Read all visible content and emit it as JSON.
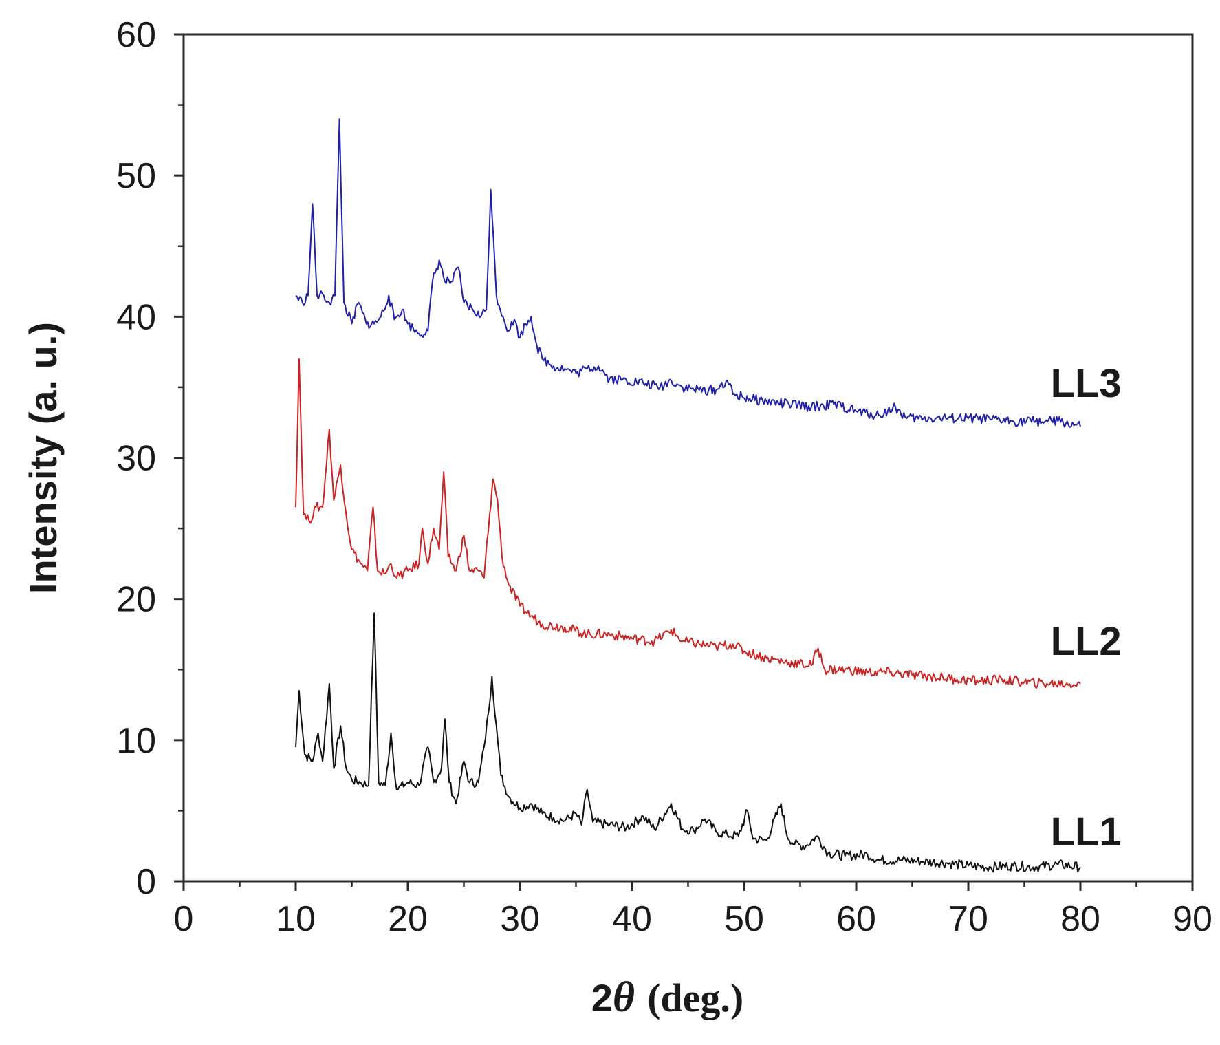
{
  "chart_data": {
    "type": "line",
    "xlabel_prefix": "2",
    "xlabel_symbol": "θ",
    "xlabel_suffix": "(deg.)",
    "ylabel": "Intensity (a. u.)",
    "xlim": [
      0,
      90
    ],
    "ylim": [
      0,
      60
    ],
    "xticks": [
      0,
      10,
      20,
      30,
      40,
      50,
      60,
      70,
      80,
      90
    ],
    "yticks": [
      0,
      10,
      20,
      30,
      40,
      50,
      60
    ],
    "grid": false,
    "series": [
      {
        "name": "LL1",
        "color": "#111111",
        "points": [
          [
            10.0,
            9.5
          ],
          [
            10.3,
            13.5
          ],
          [
            10.8,
            9.0
          ],
          [
            11.5,
            8.5
          ],
          [
            12.0,
            10.5
          ],
          [
            12.4,
            8.5
          ],
          [
            13.0,
            14.0
          ],
          [
            13.4,
            8.0
          ],
          [
            14.0,
            11.0
          ],
          [
            14.5,
            8.0
          ],
          [
            15.0,
            7.2
          ],
          [
            15.8,
            7.0
          ],
          [
            16.5,
            6.8
          ],
          [
            17.0,
            19.0
          ],
          [
            17.4,
            7.0
          ],
          [
            18.0,
            6.8
          ],
          [
            18.5,
            10.5
          ],
          [
            19.0,
            6.5
          ],
          [
            20.0,
            7.0
          ],
          [
            21.0,
            6.8
          ],
          [
            21.8,
            9.5
          ],
          [
            22.3,
            7.0
          ],
          [
            23.0,
            8.0
          ],
          [
            23.3,
            11.5
          ],
          [
            23.7,
            7.0
          ],
          [
            24.3,
            5.5
          ],
          [
            25.0,
            8.5
          ],
          [
            25.5,
            7.0
          ],
          [
            26.3,
            7.0
          ],
          [
            26.8,
            9.5
          ],
          [
            27.2,
            12.0
          ],
          [
            27.5,
            14.5
          ],
          [
            27.9,
            11.0
          ],
          [
            28.3,
            7.5
          ],
          [
            29.0,
            6.0
          ],
          [
            30.0,
            5.2
          ],
          [
            31.0,
            5.5
          ],
          [
            32.0,
            4.8
          ],
          [
            33.0,
            4.5
          ],
          [
            34.0,
            4.3
          ],
          [
            35.0,
            4.8
          ],
          [
            35.5,
            4.0
          ],
          [
            36.0,
            6.5
          ],
          [
            36.5,
            4.2
          ],
          [
            38.0,
            4.0
          ],
          [
            39.5,
            3.8
          ],
          [
            41.0,
            4.6
          ],
          [
            42.0,
            3.7
          ],
          [
            43.5,
            5.5
          ],
          [
            44.5,
            3.7
          ],
          [
            45.5,
            3.6
          ],
          [
            46.5,
            4.4
          ],
          [
            47.5,
            3.5
          ],
          [
            48.5,
            3.3
          ],
          [
            49.5,
            3.2
          ],
          [
            50.3,
            5.0
          ],
          [
            50.8,
            3.0
          ],
          [
            52.0,
            2.9
          ],
          [
            53.3,
            5.5
          ],
          [
            53.8,
            3.3
          ],
          [
            54.5,
            2.6
          ],
          [
            55.5,
            2.5
          ],
          [
            56.5,
            3.2
          ],
          [
            57.5,
            2.0
          ],
          [
            59.0,
            1.8
          ],
          [
            61.0,
            1.9
          ],
          [
            62.0,
            1.5
          ],
          [
            64.0,
            1.5
          ],
          [
            66.0,
            1.4
          ],
          [
            68.0,
            1.3
          ],
          [
            70.0,
            1.1
          ],
          [
            72.0,
            1.0
          ],
          [
            74.0,
            1.1
          ],
          [
            76.0,
            1.0
          ],
          [
            78.0,
            1.2
          ],
          [
            80.0,
            1.0
          ]
        ]
      },
      {
        "name": "LL2",
        "color": "#cc2222",
        "points": [
          [
            10.0,
            26.5
          ],
          [
            10.3,
            37.0
          ],
          [
            10.7,
            26.0
          ],
          [
            11.2,
            25.5
          ],
          [
            11.8,
            26.5
          ],
          [
            12.4,
            26.5
          ],
          [
            13.0,
            32.0
          ],
          [
            13.4,
            27.0
          ],
          [
            14.0,
            29.5
          ],
          [
            14.5,
            26.0
          ],
          [
            15.0,
            23.5
          ],
          [
            15.8,
            22.5
          ],
          [
            16.4,
            22.0
          ],
          [
            16.9,
            26.5
          ],
          [
            17.3,
            22.0
          ],
          [
            18.0,
            21.8
          ],
          [
            18.5,
            22.5
          ],
          [
            19.0,
            21.5
          ],
          [
            20.0,
            22.0
          ],
          [
            21.0,
            22.5
          ],
          [
            21.3,
            25.0
          ],
          [
            21.8,
            22.5
          ],
          [
            22.3,
            25.0
          ],
          [
            22.8,
            23.5
          ],
          [
            23.2,
            29.0
          ],
          [
            23.6,
            23.0
          ],
          [
            24.3,
            22.0
          ],
          [
            25.0,
            24.5
          ],
          [
            25.5,
            22.0
          ],
          [
            26.3,
            22.0
          ],
          [
            26.8,
            21.5
          ],
          [
            27.3,
            26.0
          ],
          [
            27.6,
            28.5
          ],
          [
            28.0,
            27.0
          ],
          [
            28.4,
            23.0
          ],
          [
            29.0,
            21.0
          ],
          [
            30.0,
            19.5
          ],
          [
            31.0,
            18.8
          ],
          [
            32.0,
            18.2
          ],
          [
            34.0,
            18.0
          ],
          [
            36.0,
            17.5
          ],
          [
            38.0,
            17.5
          ],
          [
            40.0,
            17.2
          ],
          [
            42.0,
            17.0
          ],
          [
            43.5,
            17.8
          ],
          [
            44.5,
            17.0
          ],
          [
            46.0,
            16.8
          ],
          [
            47.5,
            16.6
          ],
          [
            49.0,
            16.8
          ],
          [
            50.0,
            16.3
          ],
          [
            52.0,
            15.8
          ],
          [
            54.0,
            15.5
          ],
          [
            56.0,
            15.3
          ],
          [
            56.6,
            16.5
          ],
          [
            57.2,
            15.0
          ],
          [
            59.0,
            15.0
          ],
          [
            61.0,
            14.8
          ],
          [
            63.0,
            14.8
          ],
          [
            65.0,
            14.6
          ],
          [
            67.0,
            14.5
          ],
          [
            69.0,
            14.3
          ],
          [
            71.0,
            14.2
          ],
          [
            73.0,
            14.3
          ],
          [
            75.0,
            14.1
          ],
          [
            77.0,
            14.0
          ],
          [
            80.0,
            14.0
          ]
        ]
      },
      {
        "name": "LL3",
        "color": "#1f1faa",
        "points": [
          [
            10.0,
            41.5
          ],
          [
            10.6,
            41.0
          ],
          [
            11.1,
            41.5
          ],
          [
            11.5,
            48.0
          ],
          [
            11.9,
            41.5
          ],
          [
            12.5,
            41.5
          ],
          [
            13.0,
            41.0
          ],
          [
            13.5,
            41.5
          ],
          [
            13.9,
            54.0
          ],
          [
            14.3,
            41.0
          ],
          [
            15.0,
            39.5
          ],
          [
            15.6,
            41.0
          ],
          [
            16.3,
            39.5
          ],
          [
            17.0,
            39.5
          ],
          [
            17.6,
            40.0
          ],
          [
            18.3,
            41.5
          ],
          [
            18.8,
            39.8
          ],
          [
            19.5,
            40.5
          ],
          [
            20.0,
            39.5
          ],
          [
            21.0,
            38.8
          ],
          [
            21.8,
            39.0
          ],
          [
            22.2,
            42.5
          ],
          [
            22.8,
            44.0
          ],
          [
            23.3,
            42.5
          ],
          [
            24.0,
            42.5
          ],
          [
            24.5,
            43.5
          ],
          [
            25.0,
            41.0
          ],
          [
            25.8,
            40.5
          ],
          [
            26.5,
            40.0
          ],
          [
            27.0,
            40.5
          ],
          [
            27.4,
            49.0
          ],
          [
            27.9,
            41.5
          ],
          [
            28.5,
            40.0
          ],
          [
            29.0,
            39.0
          ],
          [
            29.5,
            39.8
          ],
          [
            30.0,
            38.5
          ],
          [
            30.5,
            39.5
          ],
          [
            31.0,
            40.0
          ],
          [
            31.5,
            38.0
          ],
          [
            32.0,
            37.0
          ],
          [
            33.0,
            36.5
          ],
          [
            34.0,
            36.3
          ],
          [
            35.0,
            36.0
          ],
          [
            36.0,
            36.3
          ],
          [
            37.0,
            36.5
          ],
          [
            38.0,
            35.6
          ],
          [
            39.5,
            35.5
          ],
          [
            41.0,
            35.3
          ],
          [
            42.5,
            35.0
          ],
          [
            43.5,
            35.5
          ],
          [
            44.5,
            35.0
          ],
          [
            46.0,
            34.8
          ],
          [
            47.5,
            34.8
          ],
          [
            48.5,
            35.5
          ],
          [
            49.0,
            34.5
          ],
          [
            50.5,
            34.2
          ],
          [
            52.0,
            34.0
          ],
          [
            54.0,
            33.8
          ],
          [
            56.0,
            33.6
          ],
          [
            58.0,
            33.8
          ],
          [
            60.0,
            33.3
          ],
          [
            62.0,
            33.0
          ],
          [
            63.5,
            33.6
          ],
          [
            64.5,
            32.8
          ],
          [
            66.0,
            32.8
          ],
          [
            68.0,
            32.8
          ],
          [
            70.0,
            32.8
          ],
          [
            72.0,
            32.7
          ],
          [
            74.0,
            32.6
          ],
          [
            76.0,
            32.6
          ],
          [
            78.0,
            32.6
          ],
          [
            80.0,
            32.2
          ]
        ]
      }
    ],
    "series_labels": [
      {
        "name": "LL3",
        "at": [
          80.5,
          35.3
        ]
      },
      {
        "name": "LL2",
        "at": [
          80.5,
          17.0
        ]
      },
      {
        "name": "LL1",
        "at": [
          80.5,
          3.5
        ]
      }
    ]
  }
}
